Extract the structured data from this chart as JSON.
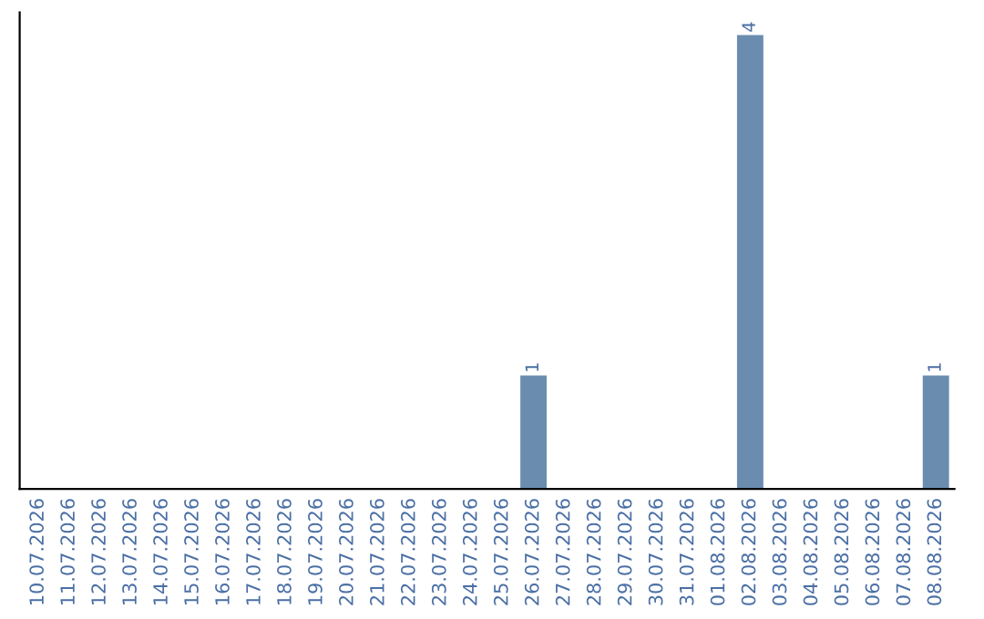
{
  "chart_data": {
    "type": "bar",
    "categories": [
      "10.07.2026",
      "11.07.2026",
      "12.07.2026",
      "13.07.2026",
      "14.07.2026",
      "15.07.2026",
      "16.07.2026",
      "17.07.2026",
      "18.07.2026",
      "19.07.2026",
      "20.07.2026",
      "21.07.2026",
      "22.07.2026",
      "23.07.2026",
      "24.07.2026",
      "25.07.2026",
      "26.07.2026",
      "27.07.2026",
      "28.07.2026",
      "29.07.2026",
      "30.07.2026",
      "31.07.2026",
      "01.08.2026",
      "02.08.2026",
      "03.08.2026",
      "04.08.2026",
      "05.08.2026",
      "06.08.2026",
      "07.08.2026",
      "08.08.2026"
    ],
    "values": [
      null,
      null,
      null,
      null,
      null,
      null,
      null,
      null,
      null,
      null,
      null,
      null,
      null,
      null,
      null,
      null,
      1,
      null,
      null,
      null,
      null,
      null,
      null,
      4,
      null,
      null,
      null,
      null,
      null,
      1
    ],
    "color": "#6a8caf",
    "data_labels": true,
    "tick_labels": "x",
    "grid": false,
    "legend": false
  }
}
